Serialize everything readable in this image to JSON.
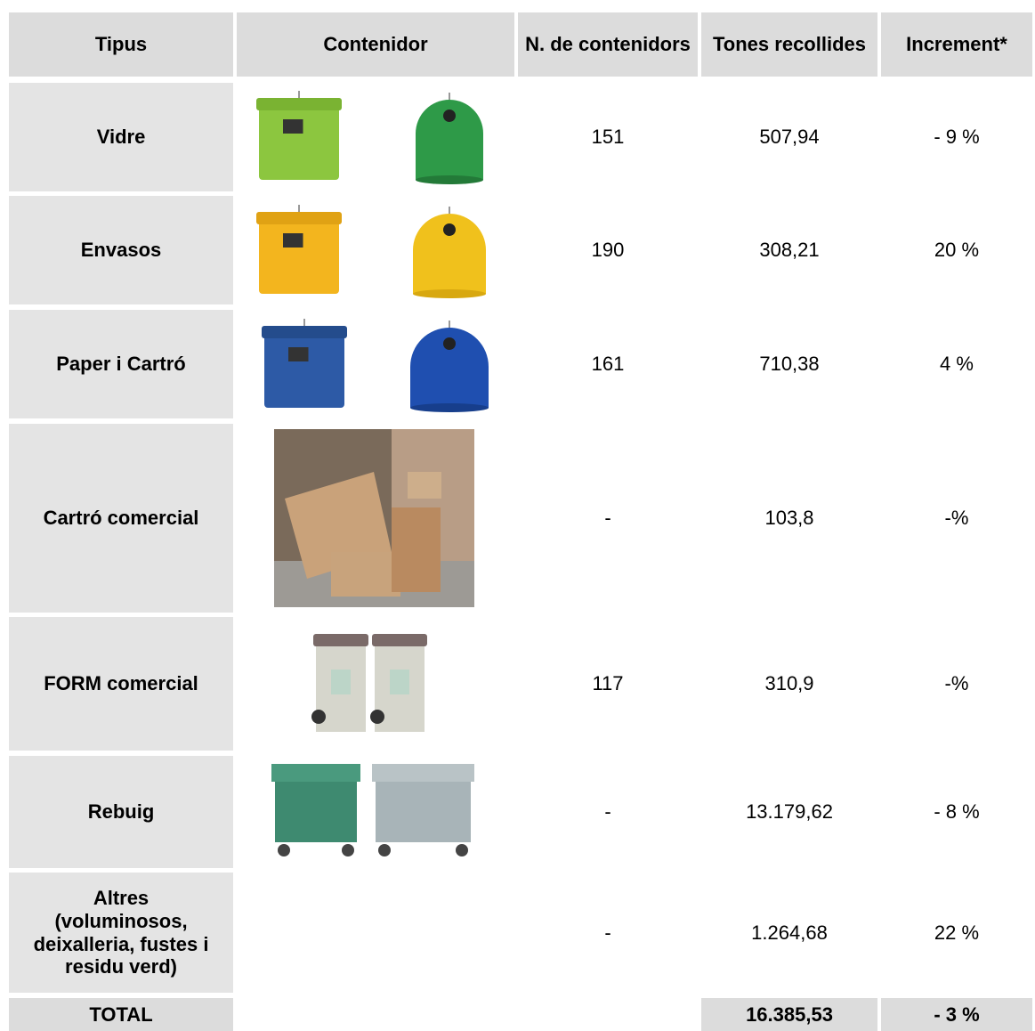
{
  "table": {
    "header": [
      "Tipus",
      "Contenidor",
      "N. de contenidors",
      "Tones recollides",
      "Increment*"
    ],
    "rows": [
      [
        "Vidre",
        "151",
        "507,94",
        "- 9 %"
      ],
      [
        "Envasos",
        "190",
        "308,21",
        "20 %"
      ],
      [
        "Paper i Cartró",
        "161",
        "710,38",
        "4 %"
      ],
      [
        "Cartró comercial",
        "-",
        "103,8",
        "-%"
      ],
      [
        "FORM comercial",
        "117",
        "310,9",
        "-%"
      ],
      [
        "Rebuig",
        "-",
        "13.179,62",
        "- 8 %"
      ],
      [
        "Altres\n(voluminosos,\ndeixalleria, fustes i\nresidu verd)",
        "-",
        "1.264,68",
        "22 %"
      ]
    ],
    "total": {
      "label": "TOTAL",
      "tones": "16.385,53",
      "increment": "- 3 %"
    }
  }
}
